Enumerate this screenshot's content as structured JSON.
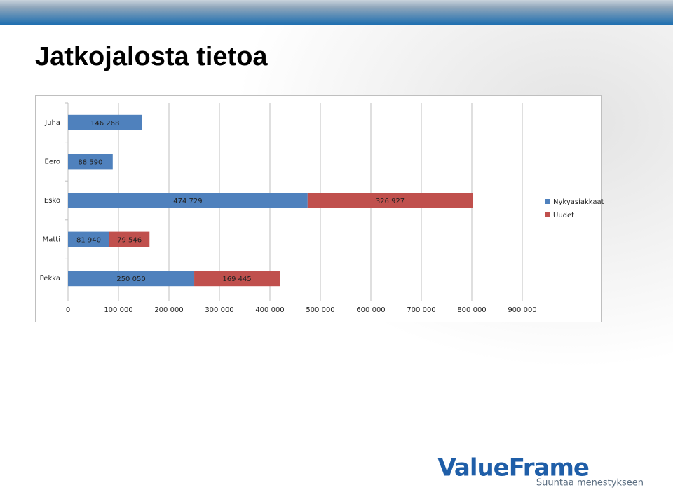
{
  "header": {
    "title": "Jatkojalosta tietoa"
  },
  "footer": {
    "logo": "ValueFrame",
    "tagline": "Suuntaa menestykseen"
  },
  "chart_data": {
    "type": "stacked-barh",
    "categories": [
      "Juha",
      "Eero",
      "Esko",
      "Matti",
      "Pekka"
    ],
    "series": [
      {
        "name": "Nykyasiakkaat",
        "color": "#4f81bd",
        "values": [
          146268,
          88590,
          474729,
          81940,
          250050
        ],
        "value_labels": [
          "146 268",
          "88 590",
          "474 729",
          "81 940",
          "250 050"
        ]
      },
      {
        "name": "Uudet",
        "color": "#c0504d",
        "values": [
          null,
          null,
          326927,
          79546,
          169445
        ],
        "value_labels": [
          null,
          null,
          "326 927",
          "79 546",
          "169 445"
        ]
      }
    ],
    "xlim": [
      0,
      900000
    ],
    "xticks": [
      0,
      {
        "value": 100000,
        "label": "100 000"
      },
      {
        "value": 200000,
        "label": "200 000"
      },
      {
        "value": 300000,
        "label": "300 000"
      },
      {
        "value": 400000,
        "label": "400 000"
      },
      {
        "value": 500000,
        "label": "500 000"
      },
      {
        "value": 600000,
        "label": "600 000"
      },
      {
        "value": 700000,
        "label": "700 000"
      },
      {
        "value": 800000,
        "label": "800 000"
      },
      {
        "value": 900000,
        "label": "900 000"
      }
    ],
    "grid": true,
    "legend": "right"
  }
}
